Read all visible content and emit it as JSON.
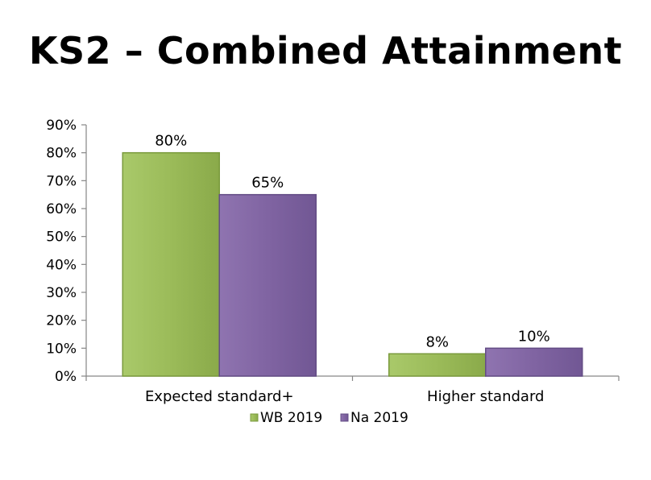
{
  "slide": {
    "title": "KS2 – Combined Attainment"
  },
  "colors": {
    "WB 2019": "#9bbb59",
    "Na 2019": "#8064a2"
  },
  "chart_data": {
    "type": "bar",
    "categories": [
      "Expected standard+",
      "Higher standard"
    ],
    "series": [
      {
        "name": "WB 2019",
        "values": [
          80,
          8
        ],
        "labels": [
          "80%",
          "8%"
        ]
      },
      {
        "name": "Na 2019",
        "values": [
          65,
          10
        ],
        "labels": [
          "65%",
          "10%"
        ]
      }
    ],
    "ylim": [
      0,
      90
    ],
    "yticks": [
      {
        "value": 0,
        "label": "0%"
      },
      {
        "value": 10,
        "label": "10%"
      },
      {
        "value": 20,
        "label": "20%"
      },
      {
        "value": 30,
        "label": "30%"
      },
      {
        "value": 40,
        "label": "40%"
      },
      {
        "value": 50,
        "label": "50%"
      },
      {
        "value": 60,
        "label": "60%"
      },
      {
        "value": 70,
        "label": "70%"
      },
      {
        "value": 80,
        "label": "80%"
      },
      {
        "value": 90,
        "label": "90%"
      }
    ],
    "grid": false,
    "legend_position": "bottom"
  }
}
